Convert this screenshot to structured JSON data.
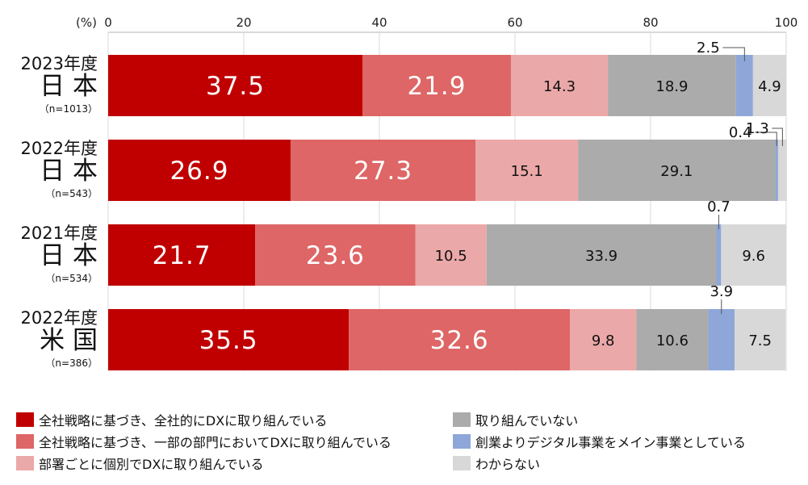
{
  "chart_data": {
    "type": "bar",
    "orientation": "horizontal-stacked",
    "unit_label": "(%)",
    "xlim": [
      0,
      100
    ],
    "xticks": [
      0,
      20,
      40,
      60,
      80,
      100
    ],
    "grid": true,
    "legend_position": "bottom",
    "categories": [
      {
        "year": "2023年度",
        "country": "日 本",
        "n": "（n=1013）"
      },
      {
        "year": "2022年度",
        "country": "日 本",
        "n": "（n=543）"
      },
      {
        "year": "2021年度",
        "country": "日 本",
        "n": "（n=534）"
      },
      {
        "year": "2022年度",
        "country": "米 国",
        "n": "（n=386）"
      }
    ],
    "series": [
      {
        "name": "全社戦略に基づき、全社的にDXに取り組んでいる",
        "color": "#C00000",
        "values": [
          37.5,
          26.9,
          21.7,
          35.5
        ]
      },
      {
        "name": "全社戦略に基づき、一部の部門においてDXに取り組んでいる",
        "color": "#DE6666",
        "values": [
          21.9,
          27.3,
          23.6,
          32.6
        ]
      },
      {
        "name": "部署ごとに個別でDXに取り組んでいる",
        "color": "#EBA8A8",
        "values": [
          14.3,
          15.1,
          10.5,
          9.8
        ]
      },
      {
        "name": "取り組んでいない",
        "color": "#ABABAB",
        "values": [
          18.9,
          29.1,
          33.9,
          10.6
        ]
      },
      {
        "name": "創業よりデジタル事業をメイン事業としている",
        "color": "#8EA7D8",
        "values": [
          2.5,
          0.4,
          0.7,
          3.9
        ]
      },
      {
        "name": "わからない",
        "color": "#D8D8D8",
        "values": [
          4.9,
          1.3,
          9.6,
          7.5
        ]
      }
    ]
  }
}
